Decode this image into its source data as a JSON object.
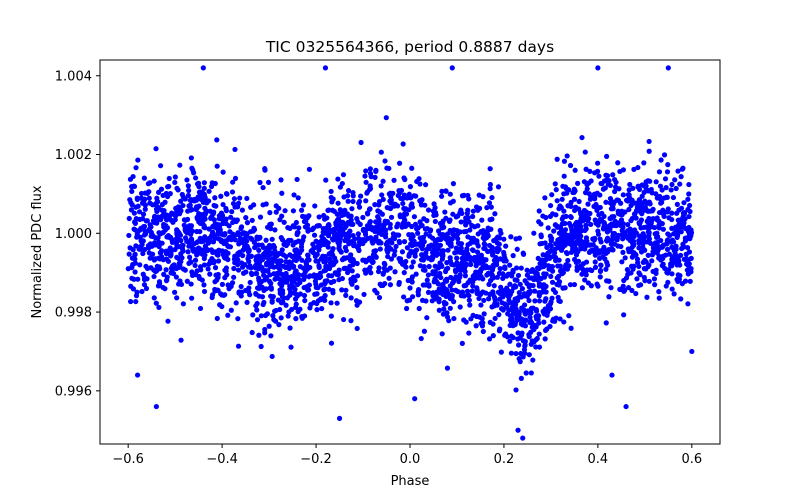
{
  "chart_data": {
    "type": "scatter",
    "title": "TIC 0325564366, period 0.8887 days",
    "xlabel": "Phase",
    "ylabel": "Normalized PDC flux",
    "xlim": [
      -0.66,
      0.66
    ],
    "ylim": [
      0.99465,
      1.0044
    ],
    "xticks": [
      -0.6,
      -0.4,
      -0.2,
      0.0,
      0.2,
      0.4,
      0.6
    ],
    "xtick_labels": [
      "−0.6",
      "−0.4",
      "−0.2",
      "0.0",
      "0.2",
      "0.4",
      "0.6"
    ],
    "yticks": [
      0.996,
      0.998,
      1.0,
      1.002,
      1.004
    ],
    "ytick_labels": [
      "0.996",
      "0.998",
      "1.000",
      "1.002",
      "1.004"
    ],
    "marker_color": "#0000ff",
    "phase_range": [
      -0.6,
      0.6
    ],
    "baseline_flux": 1.0,
    "scatter_sigma": 0.0008,
    "features": [
      {
        "name": "primary dip",
        "phase": 0.24,
        "depth": 0.0021,
        "width": 0.04
      },
      {
        "name": "secondary dip",
        "phase": -0.26,
        "depth": 0.0009,
        "width": 0.07
      },
      {
        "name": "shallow dip",
        "phase": 0.1,
        "depth": 0.0007,
        "width": 0.06
      }
    ],
    "outliers": [
      {
        "x": -0.44,
        "y": 1.0042
      },
      {
        "x": -0.18,
        "y": 1.0042
      },
      {
        "x": 0.09,
        "y": 1.0042
      },
      {
        "x": 0.4,
        "y": 1.0042
      },
      {
        "x": 0.55,
        "y": 1.0042
      },
      {
        "x": -0.54,
        "y": 0.9956
      },
      {
        "x": -0.58,
        "y": 0.9964
      },
      {
        "x": -0.15,
        "y": 0.9953
      },
      {
        "x": 0.46,
        "y": 0.9956
      },
      {
        "x": 0.43,
        "y": 0.9964
      },
      {
        "x": 0.6,
        "y": 0.997
      },
      {
        "x": 0.01,
        "y": 0.9958
      },
      {
        "x": 0.24,
        "y": 0.9948
      },
      {
        "x": 0.23,
        "y": 0.995
      }
    ]
  }
}
